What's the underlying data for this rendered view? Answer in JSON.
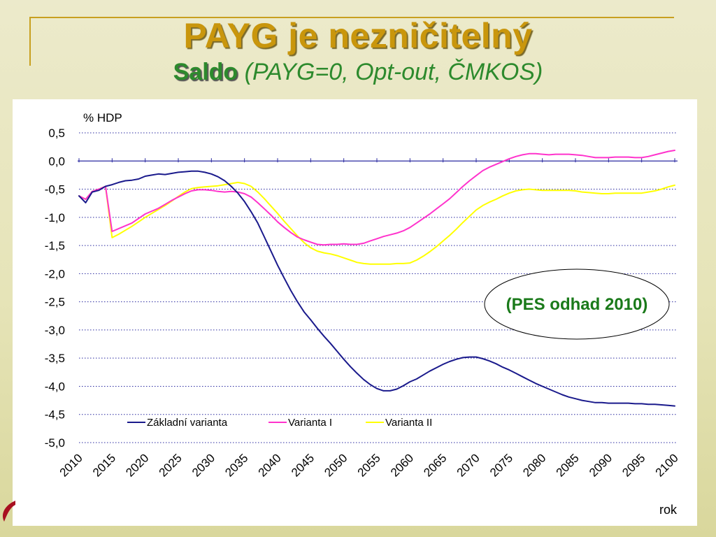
{
  "slide": {
    "title": "PAYG je nezničitelný",
    "subtitle_bold": "Saldo",
    "subtitle_rest": "(PAYG=0, Opt-out, ČMKOS)"
  },
  "chart_data": {
    "type": "line",
    "ylabel": "% HDP",
    "xlabel": "rok",
    "annotation": "(PES odhad 2010)",
    "ylim": [
      -5.0,
      0.5
    ],
    "yticks": [
      0.5,
      0.0,
      -0.5,
      -1.0,
      -1.5,
      -2.0,
      -2.5,
      -3.0,
      -3.5,
      -4.0,
      -4.5,
      -5.0
    ],
    "ytick_labels": [
      "0,5",
      "0,0",
      "-0,5",
      "-1,0",
      "-1,5",
      "-2,0",
      "-2,5",
      "-3,0",
      "-3,5",
      "-4,0",
      "-4,5",
      "-5,0"
    ],
    "xlim": [
      2010,
      2100
    ],
    "xticks": [
      2010,
      2015,
      2020,
      2025,
      2030,
      2035,
      2040,
      2045,
      2050,
      2055,
      2060,
      2065,
      2070,
      2075,
      2080,
      2085,
      2090,
      2095,
      2100
    ],
    "grid": "horizontal dotted",
    "legend_position": "bottom-left inside",
    "series": [
      {
        "name": "Základní varianta",
        "color": "#1a1a8c",
        "points": [
          [
            2010,
            -0.62
          ],
          [
            2011,
            -0.74
          ],
          [
            2012,
            -0.55
          ],
          [
            2013,
            -0.52
          ],
          [
            2014,
            -0.45
          ],
          [
            2015,
            -0.42
          ],
          [
            2016,
            -0.38
          ],
          [
            2017,
            -0.35
          ],
          [
            2018,
            -0.34
          ],
          [
            2019,
            -0.32
          ],
          [
            2020,
            -0.27
          ],
          [
            2021,
            -0.25
          ],
          [
            2022,
            -0.23
          ],
          [
            2023,
            -0.24
          ],
          [
            2024,
            -0.22
          ],
          [
            2025,
            -0.2
          ],
          [
            2026,
            -0.19
          ],
          [
            2027,
            -0.18
          ],
          [
            2028,
            -0.18
          ],
          [
            2029,
            -0.2
          ],
          [
            2030,
            -0.23
          ],
          [
            2031,
            -0.28
          ],
          [
            2032,
            -0.35
          ],
          [
            2033,
            -0.45
          ],
          [
            2034,
            -0.57
          ],
          [
            2035,
            -0.72
          ],
          [
            2036,
            -0.9
          ],
          [
            2037,
            -1.1
          ],
          [
            2038,
            -1.35
          ],
          [
            2039,
            -1.6
          ],
          [
            2040,
            -1.85
          ],
          [
            2041,
            -2.08
          ],
          [
            2042,
            -2.3
          ],
          [
            2043,
            -2.5
          ],
          [
            2044,
            -2.68
          ],
          [
            2045,
            -2.82
          ],
          [
            2046,
            -2.97
          ],
          [
            2047,
            -3.11
          ],
          [
            2048,
            -3.24
          ],
          [
            2049,
            -3.38
          ],
          [
            2050,
            -3.52
          ],
          [
            2051,
            -3.65
          ],
          [
            2052,
            -3.77
          ],
          [
            2053,
            -3.88
          ],
          [
            2054,
            -3.97
          ],
          [
            2055,
            -4.04
          ],
          [
            2056,
            -4.08
          ],
          [
            2057,
            -4.08
          ],
          [
            2058,
            -4.05
          ],
          [
            2059,
            -3.99
          ],
          [
            2060,
            -3.92
          ],
          [
            2061,
            -3.87
          ],
          [
            2062,
            -3.8
          ],
          [
            2063,
            -3.73
          ],
          [
            2064,
            -3.67
          ],
          [
            2065,
            -3.61
          ],
          [
            2066,
            -3.56
          ],
          [
            2067,
            -3.52
          ],
          [
            2068,
            -3.49
          ],
          [
            2069,
            -3.48
          ],
          [
            2070,
            -3.48
          ],
          [
            2071,
            -3.51
          ],
          [
            2072,
            -3.55
          ],
          [
            2073,
            -3.6
          ],
          [
            2074,
            -3.66
          ],
          [
            2075,
            -3.71
          ],
          [
            2076,
            -3.77
          ],
          [
            2077,
            -3.83
          ],
          [
            2078,
            -3.89
          ],
          [
            2079,
            -3.95
          ],
          [
            2080,
            -4.0
          ],
          [
            2081,
            -4.05
          ],
          [
            2082,
            -4.1
          ],
          [
            2083,
            -4.15
          ],
          [
            2084,
            -4.19
          ],
          [
            2085,
            -4.22
          ],
          [
            2086,
            -4.25
          ],
          [
            2087,
            -4.27
          ],
          [
            2088,
            -4.29
          ],
          [
            2089,
            -4.29
          ],
          [
            2090,
            -4.3
          ],
          [
            2091,
            -4.3
          ],
          [
            2092,
            -4.3
          ],
          [
            2093,
            -4.3
          ],
          [
            2094,
            -4.31
          ],
          [
            2095,
            -4.31
          ],
          [
            2096,
            -4.32
          ],
          [
            2097,
            -4.32
          ],
          [
            2098,
            -4.33
          ],
          [
            2099,
            -4.34
          ],
          [
            2100,
            -4.35
          ]
        ]
      },
      {
        "name": "Varianta I",
        "color": "#ff33cc",
        "points": [
          [
            2010,
            -0.62
          ],
          [
            2011,
            -0.68
          ],
          [
            2012,
            -0.54
          ],
          [
            2013,
            -0.5
          ],
          [
            2014,
            -0.45
          ],
          [
            2015,
            -1.25
          ],
          [
            2016,
            -1.2
          ],
          [
            2017,
            -1.15
          ],
          [
            2018,
            -1.1
          ],
          [
            2019,
            -1.02
          ],
          [
            2020,
            -0.94
          ],
          [
            2021,
            -0.89
          ],
          [
            2022,
            -0.84
          ],
          [
            2023,
            -0.77
          ],
          [
            2024,
            -0.7
          ],
          [
            2025,
            -0.64
          ],
          [
            2026,
            -0.58
          ],
          [
            2027,
            -0.53
          ],
          [
            2028,
            -0.51
          ],
          [
            2029,
            -0.51
          ],
          [
            2030,
            -0.52
          ],
          [
            2031,
            -0.54
          ],
          [
            2032,
            -0.55
          ],
          [
            2033,
            -0.54
          ],
          [
            2034,
            -0.55
          ],
          [
            2035,
            -0.58
          ],
          [
            2036,
            -0.64
          ],
          [
            2037,
            -0.74
          ],
          [
            2038,
            -0.85
          ],
          [
            2039,
            -0.96
          ],
          [
            2040,
            -1.08
          ],
          [
            2041,
            -1.18
          ],
          [
            2042,
            -1.27
          ],
          [
            2043,
            -1.35
          ],
          [
            2044,
            -1.4
          ],
          [
            2045,
            -1.44
          ],
          [
            2046,
            -1.48
          ],
          [
            2047,
            -1.49
          ],
          [
            2048,
            -1.48
          ],
          [
            2049,
            -1.48
          ],
          [
            2050,
            -1.47
          ],
          [
            2051,
            -1.48
          ],
          [
            2052,
            -1.48
          ],
          [
            2053,
            -1.46
          ],
          [
            2054,
            -1.42
          ],
          [
            2055,
            -1.38
          ],
          [
            2056,
            -1.34
          ],
          [
            2057,
            -1.31
          ],
          [
            2058,
            -1.28
          ],
          [
            2059,
            -1.24
          ],
          [
            2060,
            -1.18
          ],
          [
            2061,
            -1.1
          ],
          [
            2062,
            -1.02
          ],
          [
            2063,
            -0.94
          ],
          [
            2064,
            -0.85
          ],
          [
            2065,
            -0.76
          ],
          [
            2066,
            -0.67
          ],
          [
            2067,
            -0.56
          ],
          [
            2068,
            -0.45
          ],
          [
            2069,
            -0.35
          ],
          [
            2070,
            -0.26
          ],
          [
            2071,
            -0.17
          ],
          [
            2072,
            -0.11
          ],
          [
            2073,
            -0.06
          ],
          [
            2074,
            -0.01
          ],
          [
            2075,
            0.04
          ],
          [
            2076,
            0.08
          ],
          [
            2077,
            0.11
          ],
          [
            2078,
            0.13
          ],
          [
            2079,
            0.13
          ],
          [
            2080,
            0.12
          ],
          [
            2081,
            0.11
          ],
          [
            2082,
            0.12
          ],
          [
            2083,
            0.12
          ],
          [
            2084,
            0.12
          ],
          [
            2085,
            0.11
          ],
          [
            2086,
            0.1
          ],
          [
            2087,
            0.08
          ],
          [
            2088,
            0.06
          ],
          [
            2089,
            0.06
          ],
          [
            2090,
            0.06
          ],
          [
            2091,
            0.07
          ],
          [
            2092,
            0.07
          ],
          [
            2093,
            0.07
          ],
          [
            2094,
            0.06
          ],
          [
            2095,
            0.06
          ],
          [
            2096,
            0.08
          ],
          [
            2097,
            0.11
          ],
          [
            2098,
            0.14
          ],
          [
            2099,
            0.17
          ],
          [
            2100,
            0.19
          ]
        ]
      },
      {
        "name": "Varianta II",
        "color": "#ffff00",
        "points": [
          [
            2010,
            -0.62
          ],
          [
            2011,
            -0.68
          ],
          [
            2012,
            -0.54
          ],
          [
            2013,
            -0.5
          ],
          [
            2014,
            -0.45
          ],
          [
            2015,
            -1.36
          ],
          [
            2016,
            -1.3
          ],
          [
            2017,
            -1.23
          ],
          [
            2018,
            -1.16
          ],
          [
            2019,
            -1.08
          ],
          [
            2020,
            -1.0
          ],
          [
            2021,
            -0.93
          ],
          [
            2022,
            -0.86
          ],
          [
            2023,
            -0.79
          ],
          [
            2024,
            -0.71
          ],
          [
            2025,
            -0.63
          ],
          [
            2026,
            -0.55
          ],
          [
            2027,
            -0.49
          ],
          [
            2028,
            -0.47
          ],
          [
            2029,
            -0.46
          ],
          [
            2030,
            -0.45
          ],
          [
            2031,
            -0.44
          ],
          [
            2032,
            -0.42
          ],
          [
            2033,
            -0.4
          ],
          [
            2034,
            -0.38
          ],
          [
            2035,
            -0.4
          ],
          [
            2036,
            -0.45
          ],
          [
            2037,
            -0.55
          ],
          [
            2038,
            -0.67
          ],
          [
            2039,
            -0.8
          ],
          [
            2040,
            -0.93
          ],
          [
            2041,
            -1.07
          ],
          [
            2042,
            -1.2
          ],
          [
            2043,
            -1.33
          ],
          [
            2044,
            -1.45
          ],
          [
            2045,
            -1.54
          ],
          [
            2046,
            -1.6
          ],
          [
            2047,
            -1.63
          ],
          [
            2048,
            -1.65
          ],
          [
            2049,
            -1.68
          ],
          [
            2050,
            -1.72
          ],
          [
            2051,
            -1.76
          ],
          [
            2052,
            -1.8
          ],
          [
            2053,
            -1.82
          ],
          [
            2054,
            -1.83
          ],
          [
            2055,
            -1.83
          ],
          [
            2056,
            -1.83
          ],
          [
            2057,
            -1.83
          ],
          [
            2058,
            -1.82
          ],
          [
            2059,
            -1.82
          ],
          [
            2060,
            -1.81
          ],
          [
            2061,
            -1.76
          ],
          [
            2062,
            -1.69
          ],
          [
            2063,
            -1.61
          ],
          [
            2064,
            -1.52
          ],
          [
            2065,
            -1.42
          ],
          [
            2066,
            -1.32
          ],
          [
            2067,
            -1.21
          ],
          [
            2068,
            -1.09
          ],
          [
            2069,
            -0.98
          ],
          [
            2070,
            -0.87
          ],
          [
            2071,
            -0.79
          ],
          [
            2072,
            -0.73
          ],
          [
            2073,
            -0.68
          ],
          [
            2074,
            -0.62
          ],
          [
            2075,
            -0.57
          ],
          [
            2076,
            -0.53
          ],
          [
            2077,
            -0.51
          ],
          [
            2078,
            -0.5
          ],
          [
            2079,
            -0.51
          ],
          [
            2080,
            -0.52
          ],
          [
            2081,
            -0.52
          ],
          [
            2082,
            -0.52
          ],
          [
            2083,
            -0.52
          ],
          [
            2084,
            -0.52
          ],
          [
            2085,
            -0.53
          ],
          [
            2086,
            -0.55
          ],
          [
            2087,
            -0.56
          ],
          [
            2088,
            -0.57
          ],
          [
            2089,
            -0.58
          ],
          [
            2090,
            -0.58
          ],
          [
            2091,
            -0.57
          ],
          [
            2092,
            -0.57
          ],
          [
            2093,
            -0.57
          ],
          [
            2094,
            -0.57
          ],
          [
            2095,
            -0.57
          ],
          [
            2096,
            -0.55
          ],
          [
            2097,
            -0.53
          ],
          [
            2098,
            -0.5
          ],
          [
            2099,
            -0.46
          ],
          [
            2100,
            -0.43
          ]
        ]
      }
    ]
  }
}
